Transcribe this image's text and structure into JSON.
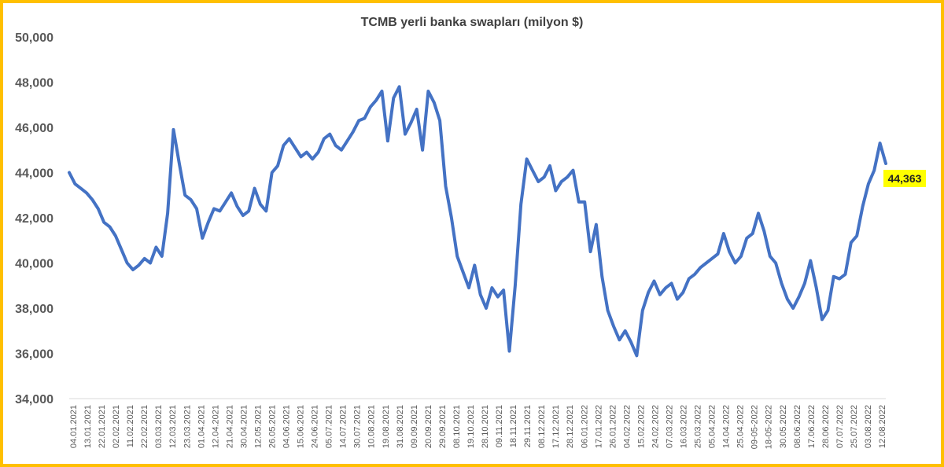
{
  "chart_data": {
    "type": "line",
    "title": "TCMB yerli banka swapları (milyon $)",
    "xlabel": "",
    "ylabel": "",
    "ylim": [
      34000,
      50000
    ],
    "yticks": [
      "34,000",
      "36,000",
      "38,000",
      "40,000",
      "42,000",
      "44,000",
      "46,000",
      "48,000",
      "50,000"
    ],
    "grid": false,
    "legend": "none",
    "line_color": "#4472C4",
    "callout": {
      "label": "44,363",
      "color": "#FFFF00"
    },
    "x_tick_labels": [
      "04.01.2021",
      "13.01.2021",
      "22.01.2021",
      "02.02.2021",
      "11.02.2021",
      "22.02.2021",
      "03.03.2021",
      "12.03.2021",
      "23.03.2021",
      "01.04.2021",
      "12.04.2021",
      "21.04.2021",
      "30.04.2021",
      "12.05.2021",
      "26.05.2021",
      "04.06.2021",
      "15.06.2021",
      "24.06.2021",
      "05.07.2021",
      "14.07.2021",
      "30.07.2021",
      "10.08.2021",
      "19.08.2021",
      "31.08.2021",
      "09.09.2021",
      "20.09.2021",
      "29.09.2021",
      "08.10.2021",
      "19.10.2021",
      "28.10.2021",
      "09.11.2021",
      "18.11.2021",
      "29.11.2021",
      "08.12.2021",
      "17.12.2021",
      "28.12.2021",
      "06.01.2022",
      "17.01.2022",
      "26.01.2022",
      "04.02.2022",
      "15.02.2022",
      "24.02.2022",
      "07.03.2022",
      "16.03.2022",
      "25.03.2022",
      "05.04.2022",
      "14.04.2022",
      "25.04.2022",
      "09-05-2022",
      "18-05-2022",
      "30.05.2022",
      "08.06.2022",
      "17.06.2022",
      "28.06.2022",
      "07.07.2022",
      "25.07.2022",
      "03.08.2022",
      "12.08.2022"
    ],
    "series": [
      {
        "values": [
          44000,
          43500,
          43300,
          43100,
          42800,
          42400,
          41800,
          41600,
          41200,
          40600,
          40000,
          39700,
          39900,
          40200,
          40000,
          40700,
          40300,
          42200,
          45900,
          44400,
          43000,
          42800,
          42400,
          41100,
          41800,
          42400,
          42300,
          42700,
          43100,
          42500,
          42100,
          42300,
          43300,
          42600,
          42300,
          44000,
          44300,
          45200,
          45500,
          45100,
          44700,
          44900,
          44600,
          44900,
          45500,
          45700,
          45200,
          45000,
          45400,
          45800,
          46300,
          46400,
          46900,
          47200,
          47600,
          45400,
          47300,
          47800,
          45700,
          46200,
          46800,
          45000,
          47600,
          47100,
          46300,
          43400,
          42000,
          40300,
          39600,
          38900,
          39900,
          38600,
          38000,
          38900,
          38500,
          38800,
          36100,
          39000,
          42600,
          44600,
          44100,
          43600,
          43800,
          44300,
          43200,
          43600,
          43800,
          44100,
          42700,
          42700,
          40500,
          41700,
          39400,
          37900,
          37200,
          36600,
          37000,
          36500,
          35900,
          37900,
          38700,
          39200,
          38600,
          38900,
          39100,
          38400,
          38700,
          39300,
          39500,
          39800,
          40000,
          40200,
          40400,
          41300,
          40500,
          40000,
          40300,
          41100,
          41300,
          42200,
          41400,
          40300,
          40000,
          39100,
          38400,
          38000,
          38500,
          39100,
          40100,
          38900,
          37500,
          37900,
          39400,
          39300,
          39500,
          40900,
          41200,
          42500,
          43500,
          44100,
          45300,
          44400
        ]
      }
    ]
  }
}
